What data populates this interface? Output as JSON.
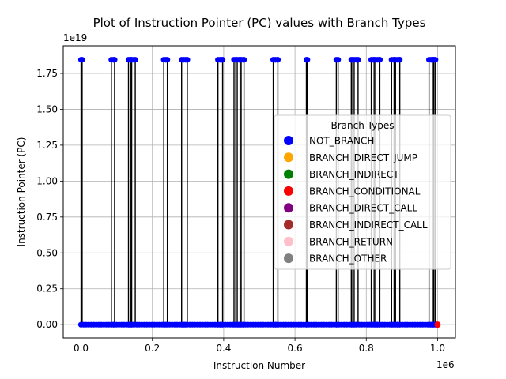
{
  "chart_data": {
    "type": "line",
    "title": "Plot of Instruction Pointer (PC) values with Branch Types",
    "xlabel": "Instruction Number",
    "ylabel": "Instruction Pointer (PC)",
    "x_offset_text": "1e6",
    "y_offset_text": "1e19",
    "xlim": [
      -0.05,
      1.05
    ],
    "ylim": [
      -0.0925,
      1.9425
    ],
    "x_ticks": [
      0.0,
      0.2,
      0.4,
      0.6,
      0.8,
      1.0
    ],
    "x_tick_labels": [
      "0.0",
      "0.2",
      "0.4",
      "0.6",
      "0.8",
      "1.0"
    ],
    "y_ticks": [
      0.0,
      0.25,
      0.5,
      0.75,
      1.0,
      1.25,
      1.5,
      1.75
    ],
    "y_tick_labels": [
      "0.00",
      "0.25",
      "0.50",
      "0.75",
      "1.00",
      "1.25",
      "1.50",
      "1.75"
    ],
    "grid": true,
    "line_color": "#000000",
    "low_value": 0.0,
    "high_value": 1.845,
    "spikes": [
      [
        0.0,
        0.003
      ],
      [
        0.085,
        0.094
      ],
      [
        0.133,
        0.139
      ],
      [
        0.142,
        0.152
      ],
      [
        0.232,
        0.242
      ],
      [
        0.282,
        0.298
      ],
      [
        0.384,
        0.397
      ],
      [
        0.429,
        0.434
      ],
      [
        0.438,
        0.446
      ],
      [
        0.449,
        0.457
      ],
      [
        0.539,
        0.552
      ],
      [
        0.632,
        0.634
      ],
      [
        0.716,
        0.721
      ],
      [
        0.758,
        0.762
      ],
      [
        0.766,
        0.777
      ],
      [
        0.814,
        0.822
      ],
      [
        0.826,
        0.838
      ],
      [
        0.871,
        0.878
      ],
      [
        0.882,
        0.894
      ],
      [
        0.976,
        0.988
      ],
      [
        0.99,
        0.994
      ]
    ],
    "last_point": {
      "x": 1.0,
      "y": 0.0,
      "series": "BRANCH_CONDITIONAL"
    },
    "legend": {
      "title": "Branch Types",
      "placement": "right",
      "entries": [
        {
          "name": "NOT_BRANCH",
          "color": "#0000ff"
        },
        {
          "name": "BRANCH_DIRECT_JUMP",
          "color": "#ffa500"
        },
        {
          "name": "BRANCH_INDIRECT",
          "color": "#008000"
        },
        {
          "name": "BRANCH_CONDITIONAL",
          "color": "#ff0000"
        },
        {
          "name": "BRANCH_DIRECT_CALL",
          "color": "#800080"
        },
        {
          "name": "BRANCH_INDIRECT_CALL",
          "color": "#a52a2a"
        },
        {
          "name": "BRANCH_RETURN",
          "color": "#ffc0cb"
        },
        {
          "name": "BRANCH_OTHER",
          "color": "#808080"
        }
      ]
    }
  }
}
